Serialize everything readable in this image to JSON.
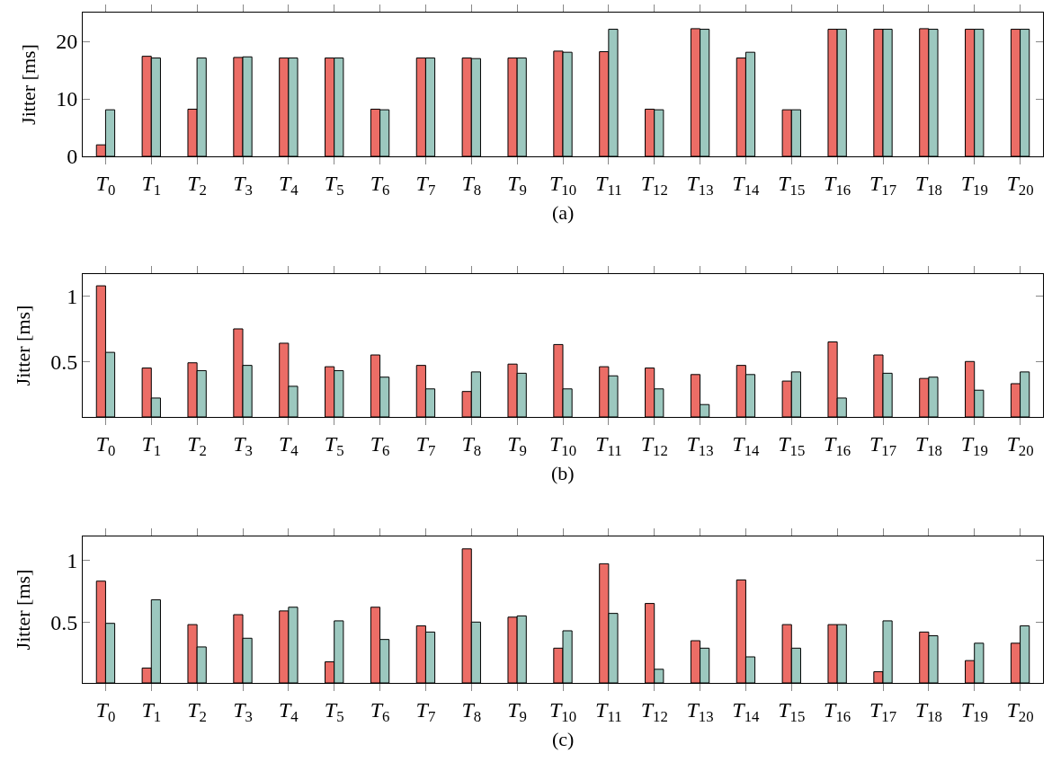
{
  "chart_data": [
    {
      "type": "bar",
      "ylabel": "Jitter [ms]",
      "annotations": [
        "(a)"
      ],
      "categories": [
        "T$_{0}$",
        "T$_{1}$",
        "T$_{2}$",
        "T$_{3}$",
        "T$_{4}$",
        "T$_{5}$",
        "T$_{6}$",
        "T$_{7}$",
        "T$_{8}$",
        "T$_{9}$",
        "T$_{10}$",
        "T$_{11}$",
        "T$_{12}$",
        "T$_{13}$",
        "T$_{14}$",
        "T$_{15}$",
        "T$_{16}$",
        "T$_{17}$",
        "T$_{18}$",
        "T$_{19}$",
        "T$_{20}$"
      ],
      "series": [
        {
          "color": "#ec6d66",
          "values": [
            2.0,
            17.4,
            8.2,
            17.2,
            17.1,
            17.1,
            8.2,
            17.1,
            17.1,
            17.1,
            18.3,
            18.2,
            8.2,
            22.2,
            17.1,
            8.1,
            22.1,
            22.1,
            22.2,
            22.1,
            22.1
          ]
        },
        {
          "color": "#9cc8bf",
          "values": [
            8.1,
            17.1,
            17.1,
            17.3,
            17.1,
            17.1,
            8.1,
            17.1,
            17.0,
            17.1,
            18.1,
            22.1,
            8.1,
            22.1,
            18.1,
            8.1,
            22.1,
            22.1,
            22.1,
            22.1,
            22.1
          ]
        }
      ],
      "ylim": [
        0,
        25
      ],
      "yticks": [
        0,
        10,
        20
      ]
    },
    {
      "type": "bar",
      "ylabel": "Jitter [ms]",
      "annotations": [
        "(b)"
      ],
      "categories": [
        "T$_{0}$",
        "T$_{1}$",
        "T$_{2}$",
        "T$_{3}$",
        "T$_{4}$",
        "T$_{5}$",
        "T$_{6}$",
        "T$_{7}$",
        "T$_{8}$",
        "T$_{9}$",
        "T$_{10}$",
        "T$_{11}$",
        "T$_{12}$",
        "T$_{13}$",
        "T$_{14}$",
        "T$_{15}$",
        "T$_{16}$",
        "T$_{17}$",
        "T$_{18}$",
        "T$_{19}$",
        "T$_{20}$"
      ],
      "series": [
        {
          "color": "#ec6d66",
          "values": [
            1.08,
            0.45,
            0.49,
            0.75,
            0.64,
            0.46,
            0.55,
            0.47,
            0.27,
            0.48,
            0.63,
            0.46,
            0.45,
            0.4,
            0.47,
            0.35,
            0.65,
            0.55,
            0.37,
            0.5,
            0.33
          ]
        },
        {
          "color": "#9cc8bf",
          "values": [
            0.57,
            0.22,
            0.43,
            0.47,
            0.31,
            0.43,
            0.38,
            0.29,
            0.42,
            0.41,
            0.29,
            0.39,
            0.29,
            0.17,
            0.4,
            0.42,
            0.22,
            0.41,
            0.38,
            0.28,
            0.42
          ]
        }
      ],
      "ylim": [
        0.075,
        1.17
      ],
      "yticks": [
        0.5,
        1
      ]
    },
    {
      "type": "bar",
      "ylabel": "Jitter [ms]",
      "annotations": [
        "(c)"
      ],
      "categories": [
        "T$_{0}$",
        "T$_{1}$",
        "T$_{2}$",
        "T$_{3}$",
        "T$_{4}$",
        "T$_{5}$",
        "T$_{6}$",
        "T$_{7}$",
        "T$_{8}$",
        "T$_{9}$",
        "T$_{10}$",
        "T$_{11}$",
        "T$_{12}$",
        "T$_{13}$",
        "T$_{14}$",
        "T$_{15}$",
        "T$_{16}$",
        "T$_{17}$",
        "T$_{18}$",
        "T$_{19}$",
        "T$_{20}$"
      ],
      "series": [
        {
          "color": "#ec6d66",
          "values": [
            0.83,
            0.13,
            0.48,
            0.56,
            0.59,
            0.18,
            0.62,
            0.47,
            1.09,
            0.54,
            0.29,
            0.97,
            0.65,
            0.35,
            0.84,
            0.48,
            0.48,
            0.1,
            0.42,
            0.19,
            0.33
          ]
        },
        {
          "color": "#9cc8bf",
          "values": [
            0.49,
            0.68,
            0.3,
            0.37,
            0.62,
            0.51,
            0.36,
            0.42,
            0.5,
            0.55,
            0.43,
            0.57,
            0.12,
            0.29,
            0.22,
            0.29,
            0.48,
            0.51,
            0.39,
            0.33,
            0.47
          ]
        }
      ],
      "ylim": [
        0.01,
        1.19
      ],
      "yticks": [
        0.5,
        1
      ]
    }
  ]
}
